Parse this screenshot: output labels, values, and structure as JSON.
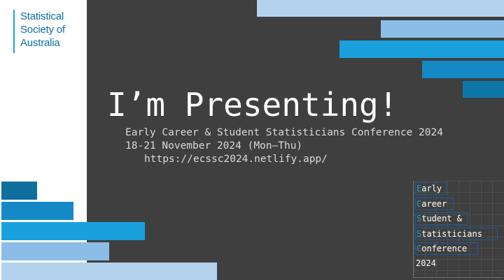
{
  "logo": {
    "lines": [
      "Statistical",
      "Society of",
      "Australia"
    ]
  },
  "headline": "I’m Presenting!",
  "conference": {
    "name": "Early Career & Student Statisticians Conference 2024",
    "dates": "18-21 November 2024 (Mon–Thu)",
    "url": "https://ecssc2024.netlify.app/"
  },
  "acronym": {
    "words": [
      {
        "initial": "E",
        "rest": "arly"
      },
      {
        "initial": "C",
        "rest": "areer"
      },
      {
        "initial": "S",
        "rest": "tudent &"
      },
      {
        "initial": "S",
        "rest": "tatisticians"
      },
      {
        "initial": "C",
        "rest": "onference"
      }
    ],
    "year": "2024"
  },
  "colors": {
    "background": "#3f3f3f",
    "panel": "#ffffff",
    "brand_blue": "#1d9fd8",
    "light_blue": "#a9cbea",
    "mid_blue": "#7fb5e0",
    "deep_blue": "#1286c2",
    "dark_blue": "#0e6fa0"
  }
}
